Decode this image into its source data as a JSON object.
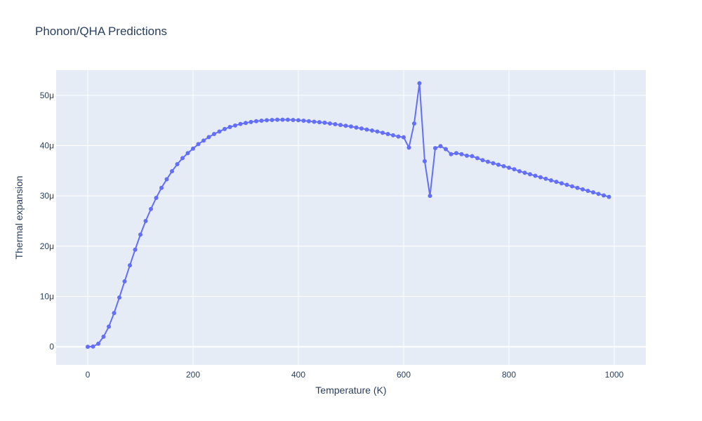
{
  "chart_data": {
    "type": "line",
    "title": "Phonon/QHA Predictions",
    "xlabel": "Temperature (K)",
    "ylabel": "Thermal expansion",
    "xlim": [
      -60,
      1060
    ],
    "ylim": [
      -3.6e-06,
      5.5e-05
    ],
    "xticks": [
      0,
      200,
      400,
      600,
      800,
      1000
    ],
    "xtick_labels": [
      "0",
      "200",
      "400",
      "600",
      "800",
      "1000"
    ],
    "yticks": [
      0,
      1e-05,
      2e-05,
      3e-05,
      4e-05,
      5e-05
    ],
    "ytick_labels": [
      "0",
      "10μ",
      "20μ",
      "30μ",
      "40μ",
      "50μ"
    ],
    "grid": true,
    "legend": "none",
    "colors": {
      "plot_bg": "#e5ecf6",
      "grid": "#ffffff",
      "line": "#636efa",
      "text": "#2a3f5f"
    },
    "series": [
      {
        "mode": "lines+markers",
        "x": [
          0,
          10,
          20,
          30,
          40,
          50,
          60,
          70,
          80,
          90,
          100,
          110,
          120,
          130,
          140,
          150,
          160,
          170,
          180,
          190,
          200,
          210,
          220,
          230,
          240,
          250,
          260,
          270,
          280,
          290,
          300,
          310,
          320,
          330,
          340,
          350,
          360,
          370,
          380,
          390,
          400,
          410,
          420,
          430,
          440,
          450,
          460,
          470,
          480,
          490,
          500,
          510,
          520,
          530,
          540,
          550,
          560,
          570,
          580,
          590,
          600,
          610,
          620,
          630,
          640,
          650,
          660,
          670,
          680,
          690,
          700,
          710,
          720,
          730,
          740,
          750,
          760,
          770,
          780,
          790,
          800,
          810,
          820,
          830,
          840,
          850,
          860,
          870,
          880,
          890,
          900,
          910,
          920,
          930,
          940,
          950,
          960,
          970,
          980,
          990
        ],
        "y": [
          0.0,
          5e-08,
          6e-07,
          2e-06,
          4e-06,
          6.7e-06,
          9.8e-06,
          1.3e-05,
          1.62e-05,
          1.93e-05,
          2.23e-05,
          2.5e-05,
          2.74e-05,
          2.96e-05,
          3.16e-05,
          3.33e-05,
          3.49e-05,
          3.63e-05,
          3.75e-05,
          3.85e-05,
          3.94e-05,
          4.03e-05,
          4.1e-05,
          4.17e-05,
          4.23e-05,
          4.28e-05,
          4.33e-05,
          4.37e-05,
          4.4e-05,
          4.43e-05,
          4.45e-05,
          4.47e-05,
          4.485e-05,
          4.495e-05,
          4.505e-05,
          4.51e-05,
          4.515e-05,
          4.515e-05,
          4.515e-05,
          4.51e-05,
          4.505e-05,
          4.495e-05,
          4.485e-05,
          4.475e-05,
          4.465e-05,
          4.455e-05,
          4.44e-05,
          4.425e-05,
          4.41e-05,
          4.395e-05,
          4.38e-05,
          4.36e-05,
          4.34e-05,
          4.32e-05,
          4.3e-05,
          4.28e-05,
          4.255e-05,
          4.23e-05,
          4.205e-05,
          4.18e-05,
          4.165e-05,
          3.96e-05,
          4.44e-05,
          5.24e-05,
          3.69e-05,
          3e-05,
          3.95e-05,
          3.99e-05,
          3.93e-05,
          3.83e-05,
          3.85e-05,
          3.83e-05,
          3.8e-05,
          3.79e-05,
          3.75e-05,
          3.71e-05,
          3.68e-05,
          3.65e-05,
          3.62e-05,
          3.59e-05,
          3.56e-05,
          3.53e-05,
          3.49e-05,
          3.46e-05,
          3.43e-05,
          3.4e-05,
          3.37e-05,
          3.34e-05,
          3.31e-05,
          3.28e-05,
          3.25e-05,
          3.22e-05,
          3.19e-05,
          3.16e-05,
          3.13e-05,
          3.1e-05,
          3.07e-05,
          3.04e-05,
          3.01e-05,
          2.98e-05
        ]
      }
    ]
  }
}
